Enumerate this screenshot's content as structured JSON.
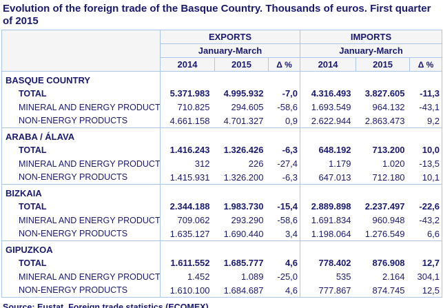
{
  "title": "Evolution of the foreign trade of the Basque Country. Thousands of euros. First quarter of 2015",
  "source": "Source: Eustat. Foreign trade statistics (ECOMEX)",
  "colors": {
    "text_navy": "#191970",
    "border_blue": "#a9c5e8",
    "header_bg": "#f5f5f6",
    "body_bg": "#ffffff"
  },
  "chart_data": {
    "type": "table",
    "title": "Evolution of the foreign trade of the Basque Country. Thousands of euros. First quarter of 2015",
    "source": "Source: Eustat. Foreign trade statistics (ECOMEX)",
    "units": "Thousands of euros",
    "column_groups": [
      {
        "label": "EXPORTS",
        "period": "January-March"
      },
      {
        "label": "IMPORTS",
        "period": "January-March"
      }
    ],
    "columns": [
      "2014",
      "2015",
      "Δ %",
      "2014",
      "2015",
      "Δ %"
    ],
    "sections": [
      {
        "name": "BASQUE COUNTRY",
        "rows": [
          {
            "label": "TOTAL",
            "bold": true,
            "values": [
              "5.371.983",
              "4.995.932",
              "-7,0",
              "4.316.493",
              "3.827.605",
              "-11,3"
            ]
          },
          {
            "label": "MINERAL AND ENERGY PRODUCTS",
            "bold": false,
            "values": [
              "710.825",
              "294.605",
              "-58,6",
              "1.693.549",
              "964.132",
              "-43,1"
            ]
          },
          {
            "label": "NON-ENERGY PRODUCTS",
            "bold": false,
            "values": [
              "4.661.158",
              "4.701.327",
              "0,9",
              "2.622.944",
              "2.863.473",
              "9,2"
            ]
          }
        ]
      },
      {
        "name": "ARABA / ÁLAVA",
        "rows": [
          {
            "label": "TOTAL",
            "bold": true,
            "values": [
              "1.416.243",
              "1.326.426",
              "-6,3",
              "648.192",
              "713.200",
              "10,0"
            ]
          },
          {
            "label": "MINERAL AND ENERGY PRODUCTS",
            "bold": false,
            "values": [
              "312",
              "226",
              "-27,4",
              "1.179",
              "1.020",
              "-13,5"
            ]
          },
          {
            "label": "NON-ENERGY PRODUCTS",
            "bold": false,
            "values": [
              "1.415.931",
              "1.326.200",
              "-6,3",
              "647.013",
              "712.180",
              "10,1"
            ]
          }
        ]
      },
      {
        "name": "BIZKAIA",
        "rows": [
          {
            "label": "TOTAL",
            "bold": true,
            "values": [
              "2.344.188",
              "1.983.730",
              "-15,4",
              "2.889.898",
              "2.237.497",
              "-22,6"
            ]
          },
          {
            "label": "MINERAL AND ENERGY PRODUCTS",
            "bold": false,
            "values": [
              "709.062",
              "293.290",
              "-58,6",
              "1.691.834",
              "960.948",
              "-43,2"
            ]
          },
          {
            "label": "NON-ENERGY PRODUCTS",
            "bold": false,
            "values": [
              "1.635.127",
              "1.690.440",
              "3,4",
              "1.198.064",
              "1.276.549",
              "6,6"
            ]
          }
        ]
      },
      {
        "name": "GIPUZKOA",
        "rows": [
          {
            "label": "TOTAL",
            "bold": true,
            "values": [
              "1.611.552",
              "1.685.777",
              "4,6",
              "778.402",
              "876.908",
              "12,7"
            ]
          },
          {
            "label": "MINERAL AND ENERGY PRODUCTS",
            "bold": false,
            "values": [
              "1.452",
              "1.089",
              "-25,0",
              "535",
              "2.164",
              "304,1"
            ]
          },
          {
            "label": "NON-ENERGY PRODUCTS",
            "bold": false,
            "values": [
              "1.610.100",
              "1.684.687",
              "4,6",
              "777.867",
              "874.745",
              "12,5"
            ]
          }
        ]
      }
    ]
  }
}
